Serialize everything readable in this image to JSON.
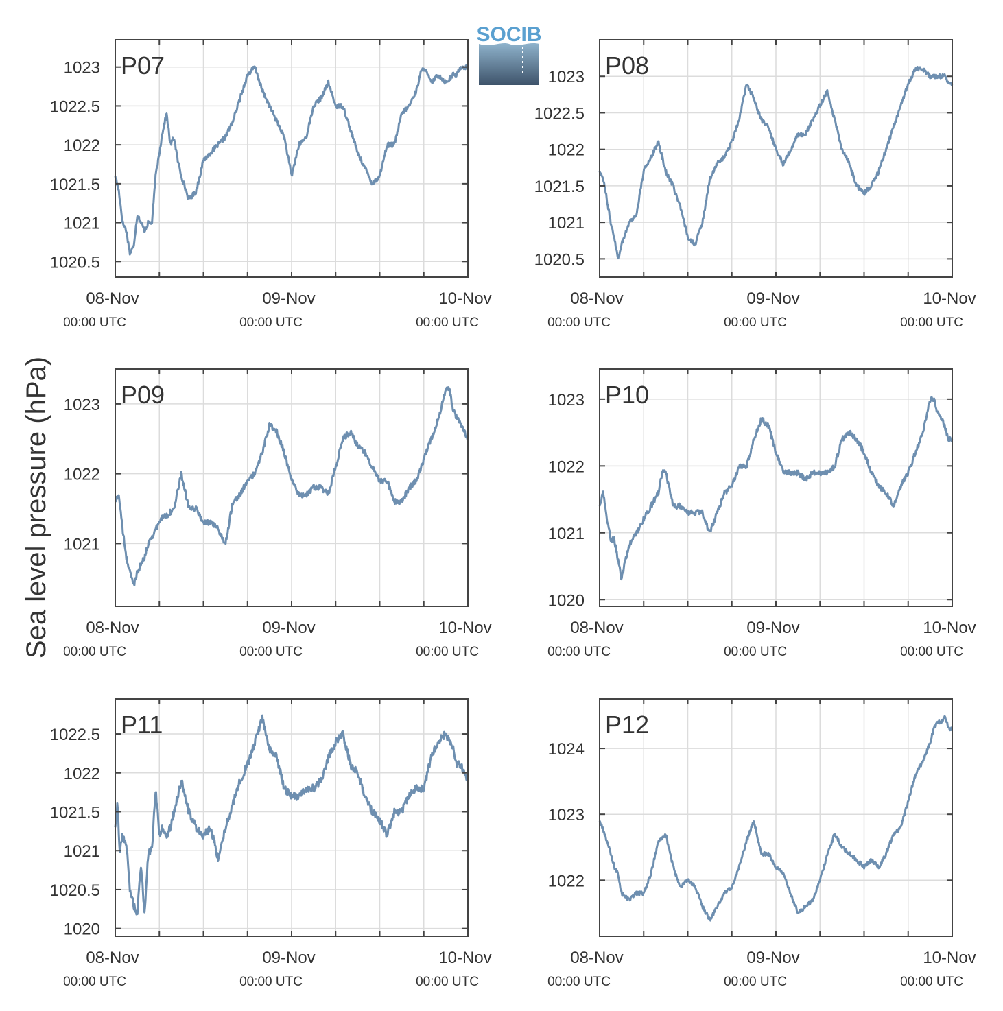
{
  "figure": {
    "ylabel": "Sea level pressure (hPa)",
    "logo_text": "SOCIB",
    "x_ticks": [
      {
        "line1": "08-Nov",
        "line2": "00:00 UTC"
      },
      {
        "line1": "09-Nov",
        "line2": "00:00 UTC"
      },
      {
        "line1": "10-Nov",
        "line2": "00:00 UTC"
      }
    ],
    "colors": {
      "series": "#6e8fb0",
      "station_label": "#e8101e",
      "grid": "#dcdcdc",
      "axis": "#444444",
      "logo_text": "#5aa0d0",
      "logo_top": "#8fb3cc",
      "logo_bottom": "#3e536a"
    }
  },
  "chart_data": [
    {
      "type": "line",
      "station": "P07",
      "xlabel": "",
      "ylabel": "Sea level pressure (hPa)",
      "xlim": [
        0,
        48
      ],
      "ylim": [
        1020.3,
        1023.35
      ],
      "yticks": [
        1020.5,
        1021,
        1021.5,
        1022,
        1022.5,
        1023
      ],
      "ytick_labels": [
        "1020.5",
        "1021",
        "1021.5",
        "1022",
        "1022.5",
        "1023"
      ],
      "grid": true,
      "noise": 0.03,
      "series": [
        {
          "x": [
            0,
            0.5,
            1,
            1.5,
            2,
            2.5,
            3,
            3.5,
            4,
            4.5,
            5,
            5.5,
            6,
            6.5,
            7,
            7.5,
            8,
            8.5,
            9,
            10,
            11,
            12,
            13,
            14,
            15,
            16,
            17,
            18,
            19,
            20,
            20.5,
            21,
            21.5,
            22,
            22.5,
            23,
            24,
            25,
            26,
            27,
            28,
            29,
            30,
            31,
            32,
            33,
            34,
            35,
            36,
            37,
            38,
            39,
            40,
            40.5,
            41,
            41.5,
            42,
            43,
            44,
            45,
            46,
            46.5,
            47,
            47.5,
            48
          ],
          "y": [
            1021.6,
            1021.4,
            1021.0,
            1020.9,
            1020.6,
            1020.7,
            1021.1,
            1021.0,
            1020.9,
            1021.0,
            1021.0,
            1021.6,
            1021.9,
            1022.2,
            1022.4,
            1022.0,
            1022.1,
            1021.8,
            1021.6,
            1021.3,
            1021.4,
            1021.8,
            1021.9,
            1022.0,
            1022.1,
            1022.3,
            1022.6,
            1022.9,
            1023.0,
            1022.7,
            1022.6,
            1022.5,
            1022.4,
            1022.3,
            1022.2,
            1022.1,
            1021.6,
            1022.0,
            1022.1,
            1022.5,
            1022.6,
            1022.8,
            1022.5,
            1022.5,
            1022.2,
            1021.9,
            1021.7,
            1021.5,
            1021.6,
            1022.0,
            1022.0,
            1022.4,
            1022.5,
            1022.6,
            1022.7,
            1022.9,
            1023.0,
            1022.8,
            1022.9,
            1022.8,
            1022.9,
            1022.9,
            1023.0,
            1023.0,
            1023.0
          ]
        }
      ]
    },
    {
      "type": "line",
      "station": "P08",
      "xlabel": "",
      "ylabel": "Sea level pressure (hPa)",
      "xlim": [
        0,
        48
      ],
      "ylim": [
        1020.25,
        1023.5
      ],
      "yticks": [
        1020.5,
        1021,
        1021.5,
        1022,
        1022.5,
        1023
      ],
      "ytick_labels": [
        "1020.5",
        "1021",
        "1021.5",
        "1022",
        "1022.5",
        "1023"
      ],
      "grid": true,
      "noise": 0.03,
      "series": [
        {
          "x": [
            0,
            0.5,
            1,
            1.5,
            2,
            2.5,
            3,
            4,
            5,
            6,
            7,
            8,
            9,
            10,
            11,
            12,
            13,
            14,
            15,
            16,
            17,
            18,
            19,
            20,
            21,
            22,
            23,
            24,
            25,
            26,
            27,
            28,
            29,
            30,
            31,
            32,
            33,
            34,
            35,
            36,
            37,
            38,
            39,
            40,
            41,
            42,
            43,
            44,
            45,
            45.5,
            46,
            46.5,
            47,
            47.5,
            48
          ],
          "y": [
            1021.7,
            1021.6,
            1021.3,
            1021.0,
            1020.8,
            1020.5,
            1020.7,
            1021.0,
            1021.1,
            1021.7,
            1021.9,
            1022.1,
            1021.7,
            1021.5,
            1021.2,
            1020.8,
            1020.7,
            1021.0,
            1021.6,
            1021.8,
            1021.9,
            1022.1,
            1022.4,
            1022.9,
            1022.7,
            1022.4,
            1022.3,
            1022.0,
            1021.8,
            1022.0,
            1022.2,
            1022.2,
            1022.4,
            1022.6,
            1022.8,
            1022.4,
            1022.0,
            1021.8,
            1021.5,
            1021.4,
            1021.5,
            1021.7,
            1022.0,
            1022.3,
            1022.6,
            1022.9,
            1023.1,
            1023.1,
            1023.0,
            1023.0,
            1023.0,
            1023.0,
            1023.0,
            1022.9,
            1022.9
          ]
        }
      ]
    },
    {
      "type": "line",
      "station": "P09",
      "xlabel": "",
      "ylabel": "Sea level pressure (hPa)",
      "xlim": [
        0,
        48
      ],
      "ylim": [
        1020.1,
        1023.5
      ],
      "yticks": [
        1021,
        1022,
        1023
      ],
      "ytick_labels": [
        "1021",
        "1022",
        "1023"
      ],
      "grid": true,
      "noise": 0.04,
      "series": [
        {
          "x": [
            0,
            0.5,
            1,
            1.5,
            2,
            2.5,
            3,
            3.5,
            4,
            4.5,
            5,
            5.5,
            6,
            6.5,
            7,
            8,
            9,
            10,
            11,
            12,
            13,
            14,
            15,
            16,
            17,
            18,
            19,
            20,
            21,
            22,
            23,
            24,
            25,
            26,
            27,
            28,
            29,
            30,
            31,
            32,
            33,
            34,
            35,
            36,
            37,
            38,
            39,
            40,
            41,
            42,
            43,
            44,
            45,
            45.5,
            46,
            46.5,
            47,
            47.5,
            48
          ],
          "y": [
            1021.6,
            1021.7,
            1021.2,
            1020.8,
            1020.6,
            1020.4,
            1020.6,
            1020.7,
            1020.8,
            1021.0,
            1021.1,
            1021.2,
            1021.3,
            1021.4,
            1021.4,
            1021.5,
            1022.0,
            1021.5,
            1021.5,
            1021.3,
            1021.3,
            1021.2,
            1021.0,
            1021.6,
            1021.7,
            1021.9,
            1022.0,
            1022.3,
            1022.7,
            1022.6,
            1022.3,
            1021.9,
            1021.7,
            1021.7,
            1021.8,
            1021.8,
            1021.7,
            1022.1,
            1022.5,
            1022.6,
            1022.4,
            1022.3,
            1022.1,
            1021.9,
            1021.9,
            1021.6,
            1021.6,
            1021.8,
            1021.9,
            1022.2,
            1022.5,
            1022.8,
            1023.2,
            1023.2,
            1022.9,
            1022.8,
            1022.7,
            1022.6,
            1022.5
          ]
        }
      ]
    },
    {
      "type": "line",
      "station": "P10",
      "xlabel": "",
      "ylabel": "Sea level pressure (hPa)",
      "xlim": [
        0,
        48
      ],
      "ylim": [
        1019.9,
        1023.45
      ],
      "yticks": [
        1020,
        1021,
        1022,
        1023
      ],
      "ytick_labels": [
        "1020",
        "1021",
        "1022",
        "1023"
      ],
      "grid": true,
      "noise": 0.04,
      "series": [
        {
          "x": [
            0,
            0.5,
            1,
            1.5,
            2,
            2.5,
            3,
            3.5,
            4,
            4.5,
            5,
            5.5,
            6,
            6.5,
            7,
            7.5,
            8,
            8.5,
            9,
            10,
            11,
            12,
            13,
            14,
            15,
            16,
            17,
            18,
            19,
            20,
            21,
            22,
            23,
            24,
            25,
            26,
            27,
            28,
            29,
            30,
            31,
            32,
            33,
            34,
            35,
            36,
            37,
            38,
            39,
            40,
            41,
            42,
            43,
            44,
            45,
            45.5,
            46,
            46.5,
            47,
            47.5,
            48
          ],
          "y": [
            1021.4,
            1021.6,
            1021.2,
            1020.9,
            1020.9,
            1020.6,
            1020.3,
            1020.6,
            1020.8,
            1020.9,
            1021.0,
            1021.1,
            1021.2,
            1021.3,
            1021.4,
            1021.5,
            1021.6,
            1021.9,
            1021.9,
            1021.4,
            1021.4,
            1021.3,
            1021.3,
            1021.3,
            1021.0,
            1021.3,
            1021.6,
            1021.7,
            1022.0,
            1022.0,
            1022.4,
            1022.7,
            1022.6,
            1022.2,
            1021.9,
            1021.9,
            1021.9,
            1021.8,
            1021.9,
            1021.9,
            1021.9,
            1022.0,
            1022.4,
            1022.5,
            1022.4,
            1022.2,
            1021.9,
            1021.7,
            1021.6,
            1021.4,
            1021.7,
            1021.9,
            1022.2,
            1022.5,
            1023.0,
            1023.0,
            1022.8,
            1022.7,
            1022.6,
            1022.4,
            1022.4
          ]
        }
      ]
    },
    {
      "type": "line",
      "station": "P11",
      "xlabel": "",
      "ylabel": "Sea level pressure (hPa)",
      "xlim": [
        0,
        48
      ],
      "ylim": [
        1019.9,
        1022.95
      ],
      "yticks": [
        1020,
        1020.5,
        1021,
        1021.5,
        1022,
        1022.5
      ],
      "ytick_labels": [
        "1020",
        "1020.5",
        "1021",
        "1021.5",
        "1022",
        "1022.5"
      ],
      "grid": true,
      "noise": 0.05,
      "series": [
        {
          "x": [
            0,
            0.3,
            0.6,
            1,
            1.5,
            2,
            2.5,
            3,
            3.5,
            4,
            4.5,
            5,
            5.5,
            6,
            6.5,
            7,
            7.5,
            8,
            9,
            10,
            11,
            12,
            13,
            14,
            15,
            16,
            17,
            18,
            19,
            20,
            21,
            22,
            23,
            24,
            25,
            26,
            27,
            28,
            29,
            30,
            31,
            32,
            33,
            34,
            35,
            36,
            37,
            38,
            39,
            40,
            41,
            42,
            43,
            44,
            45,
            46,
            46.5,
            47,
            47.5,
            48
          ],
          "y": [
            1021.3,
            1021.6,
            1021.0,
            1021.2,
            1021.1,
            1020.5,
            1020.3,
            1020.2,
            1020.8,
            1020.2,
            1021.0,
            1021.0,
            1021.8,
            1021.2,
            1021.3,
            1021.2,
            1021.3,
            1021.5,
            1021.9,
            1021.5,
            1021.3,
            1021.2,
            1021.3,
            1020.9,
            1021.3,
            1021.6,
            1021.9,
            1022.1,
            1022.4,
            1022.7,
            1022.3,
            1022.2,
            1021.8,
            1021.7,
            1021.7,
            1021.8,
            1021.8,
            1021.9,
            1022.2,
            1022.4,
            1022.5,
            1022.1,
            1022.0,
            1021.7,
            1021.5,
            1021.4,
            1021.2,
            1021.5,
            1021.5,
            1021.7,
            1021.8,
            1021.8,
            1022.2,
            1022.4,
            1022.5,
            1022.3,
            1022.1,
            1022.1,
            1022.0,
            1021.9
          ]
        }
      ]
    },
    {
      "type": "line",
      "station": "P12",
      "xlabel": "",
      "ylabel": "Sea level pressure (hPa)",
      "xlim": [
        0,
        48
      ],
      "ylim": [
        1021.15,
        1024.75
      ],
      "yticks": [
        1022,
        1023,
        1024
      ],
      "ytick_labels": [
        "1022",
        "1023",
        "1024"
      ],
      "grid": true,
      "noise": 0.03,
      "series": [
        {
          "x": [
            0,
            1,
            2,
            2.5,
            3,
            4,
            5,
            6,
            7,
            8,
            9,
            10,
            11,
            12,
            13,
            14,
            15,
            16,
            17,
            18,
            19,
            20,
            21,
            22,
            23,
            24,
            25,
            26,
            27,
            28,
            29,
            30,
            31,
            32,
            33,
            34,
            35,
            36,
            37,
            38,
            39,
            40,
            41,
            42,
            43,
            44,
            45,
            45.5,
            46,
            46.5,
            47,
            47.5,
            48
          ],
          "y": [
            1022.9,
            1022.6,
            1022.2,
            1022.1,
            1021.8,
            1021.7,
            1021.8,
            1021.8,
            1022.1,
            1022.6,
            1022.7,
            1022.2,
            1021.9,
            1022.0,
            1021.9,
            1021.6,
            1021.4,
            1021.6,
            1021.8,
            1021.9,
            1022.2,
            1022.6,
            1022.9,
            1022.4,
            1022.4,
            1022.2,
            1022.1,
            1021.8,
            1021.5,
            1021.6,
            1021.7,
            1022.0,
            1022.4,
            1022.7,
            1022.5,
            1022.4,
            1022.3,
            1022.2,
            1022.3,
            1022.2,
            1022.4,
            1022.7,
            1022.8,
            1023.2,
            1023.6,
            1023.8,
            1024.1,
            1024.3,
            1024.4,
            1024.4,
            1024.5,
            1024.3,
            1024.3
          ]
        }
      ]
    }
  ]
}
